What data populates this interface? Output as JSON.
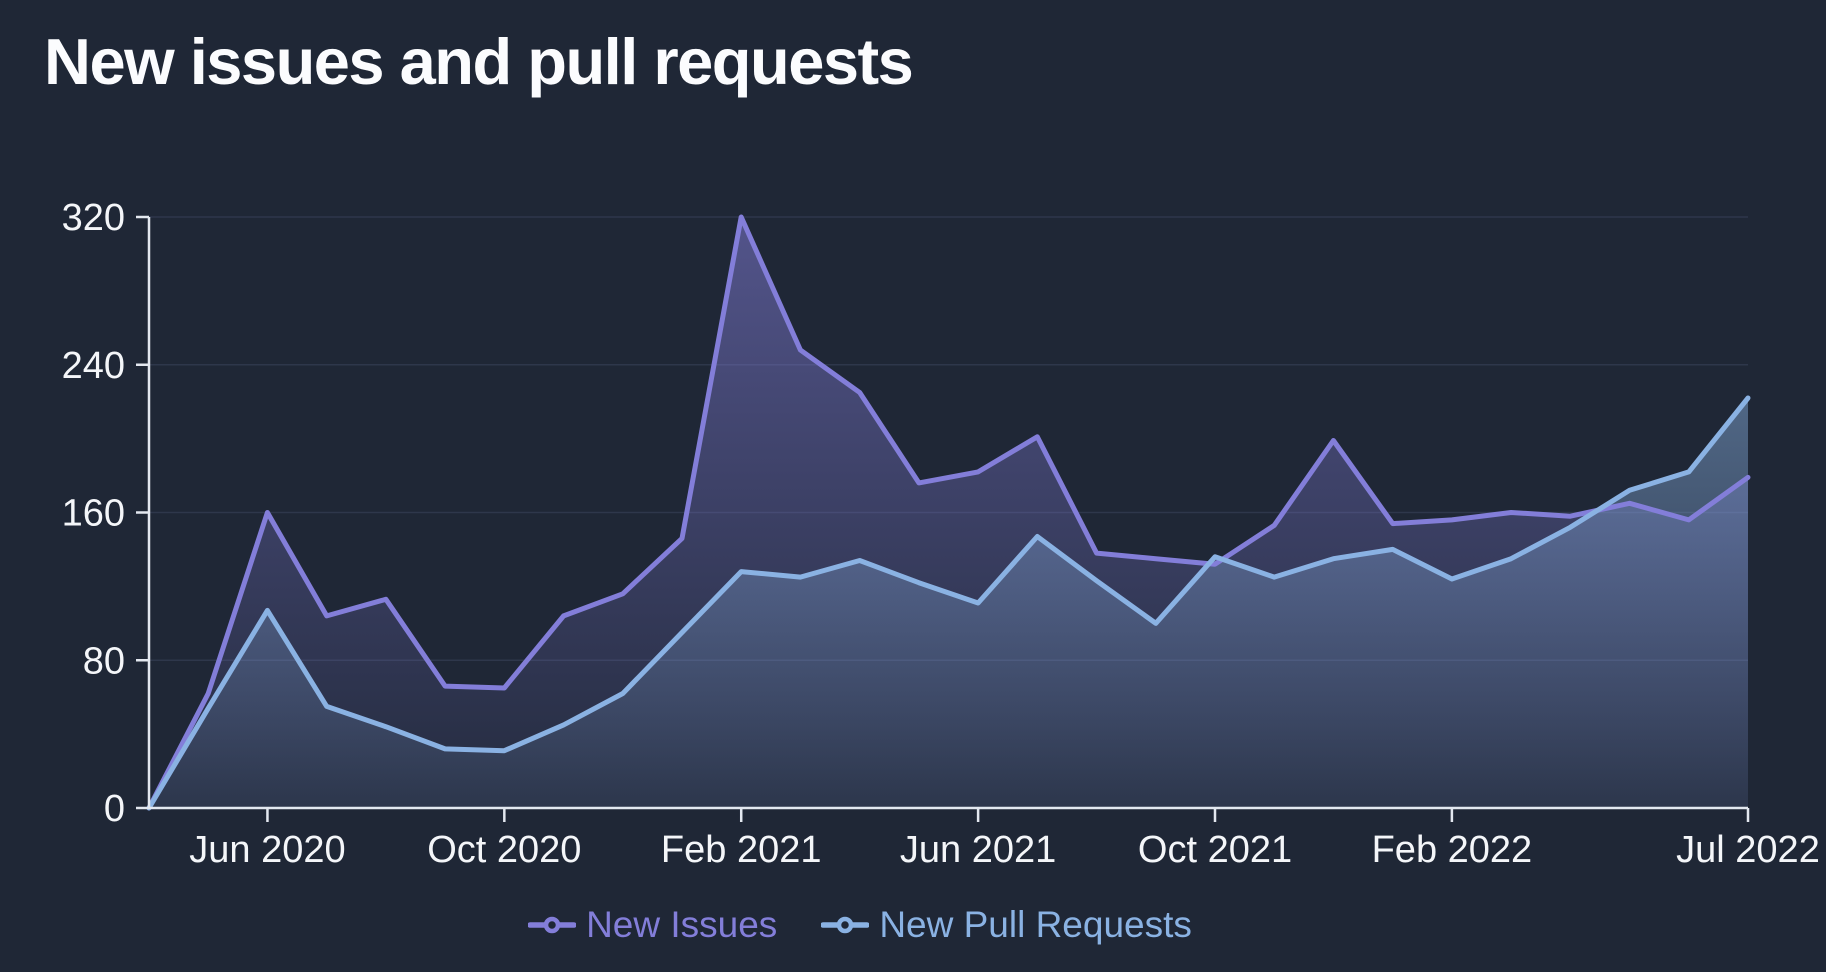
{
  "page": {
    "title": "New issues and pull requests"
  },
  "colors": {
    "background": "#1f2736",
    "axis": "#e3e8f0",
    "label": "#f4f6f9",
    "grid": "rgba(125,145,185,0.16)",
    "issues_accent": "#837ed9",
    "pull_requests_accent": "#8ab2e3"
  },
  "chart_data": {
    "type": "area",
    "title": "New issues and pull requests",
    "xlabel": "",
    "ylabel": "",
    "ylim": [
      0,
      320
    ],
    "y_ticks": [
      0,
      80,
      160,
      240,
      320
    ],
    "grid": "horizontal",
    "legend_position": "bottom",
    "x": [
      "Apr 2020",
      "May 2020",
      "Jun 2020",
      "Jul 2020",
      "Aug 2020",
      "Sep 2020",
      "Oct 2020",
      "Nov 2020",
      "Dec 2020",
      "Jan 2021",
      "Feb 2021",
      "Mar 2021",
      "Apr 2021",
      "May 2021",
      "Jun 2021",
      "Jul 2021",
      "Aug 2021",
      "Sep 2021",
      "Oct 2021",
      "Nov 2021",
      "Dec 2021",
      "Jan 2022",
      "Feb 2022",
      "Mar 2022",
      "Apr 2022",
      "May 2022",
      "Jun 2022",
      "Jul 2022"
    ],
    "x_ticks": [
      {
        "index": 2,
        "label": "Jun 2020"
      },
      {
        "index": 6,
        "label": "Oct 2020"
      },
      {
        "index": 10,
        "label": "Feb 2021"
      },
      {
        "index": 14,
        "label": "Jun 2021"
      },
      {
        "index": 18,
        "label": "Oct 2021"
      },
      {
        "index": 22,
        "label": "Feb 2022"
      },
      {
        "index": 27,
        "label": "Jul 2022"
      }
    ],
    "series": [
      {
        "name": "New Issues",
        "color": "#837ed9",
        "values": [
          0,
          62,
          160,
          104,
          113,
          66,
          65,
          104,
          116,
          146,
          320,
          248,
          225,
          176,
          182,
          201,
          138,
          135,
          132,
          153,
          199,
          154,
          156,
          160,
          158,
          165,
          156,
          179
        ]
      },
      {
        "name": "New Pull Requests",
        "color": "#8ab2e3",
        "values": [
          0,
          54,
          107,
          55,
          44,
          32,
          31,
          45,
          62,
          95,
          128,
          125,
          134,
          122,
          111,
          147,
          123,
          100,
          136,
          125,
          135,
          140,
          124,
          135,
          152,
          172,
          182,
          222
        ]
      }
    ]
  }
}
